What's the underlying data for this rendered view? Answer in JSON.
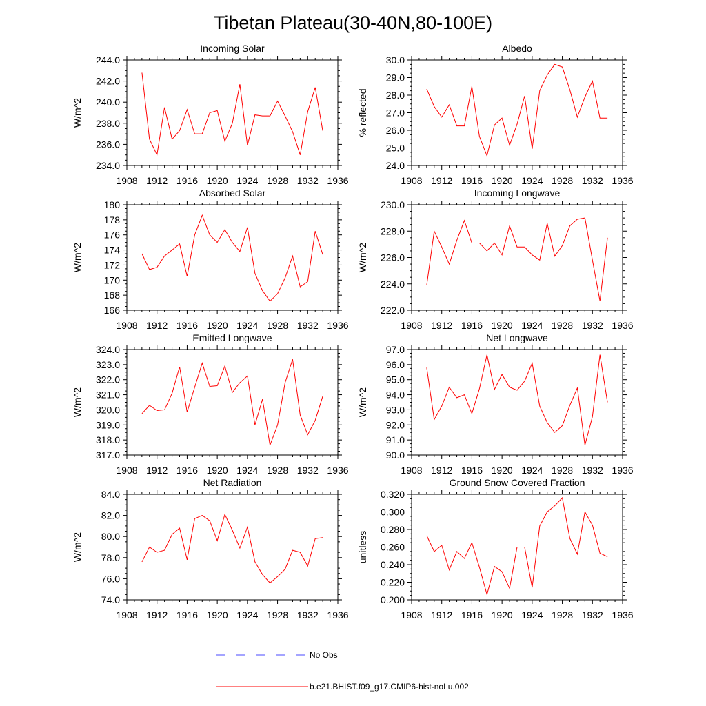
{
  "title": "Tibetan Plateau(30-40N,80-100E)",
  "legend": {
    "items": [
      {
        "label": "No Obs",
        "color": "#4a4aff",
        "style": "dashed"
      },
      {
        "label": "b.e21.BHIST.f09_g17.CMIP6-hist-noLu.002",
        "color": "#ff0000",
        "style": "solid"
      }
    ]
  },
  "chart_data": [
    {
      "type": "line",
      "title": "Incoming Solar",
      "xlabel": "",
      "ylabel": "W/m^2",
      "xlim": [
        1908,
        1936
      ],
      "ylim": [
        234.0,
        244.0
      ],
      "xticks": [
        1908,
        1912,
        1916,
        1920,
        1924,
        1928,
        1932,
        1936
      ],
      "yticks": [
        234.0,
        236.0,
        238.0,
        240.0,
        242.0,
        244.0
      ],
      "ytick_decimals": 1,
      "grid": false,
      "x": [
        1910,
        1911,
        1912,
        1913,
        1914,
        1915,
        1916,
        1917,
        1918,
        1919,
        1920,
        1921,
        1922,
        1923,
        1924,
        1925,
        1926,
        1927,
        1928,
        1929,
        1930,
        1931,
        1932,
        1933,
        1934
      ],
      "series": [
        {
          "values": [
            242.8,
            236.5,
            235.0,
            239.5,
            236.5,
            237.3,
            239.3,
            237.0,
            237.0,
            239.0,
            239.2,
            236.3,
            238.0,
            241.7,
            235.9,
            238.8,
            238.7,
            238.7,
            240.1,
            238.7,
            237.2,
            235.0,
            239.1,
            241.4,
            237.3
          ],
          "color": "#ff0000"
        }
      ]
    },
    {
      "type": "line",
      "title": "Albedo",
      "xlabel": "",
      "ylabel": "% reflected",
      "xlim": [
        1908,
        1936
      ],
      "ylim": [
        24.0,
        30.0
      ],
      "xticks": [
        1908,
        1912,
        1916,
        1920,
        1924,
        1928,
        1932,
        1936
      ],
      "yticks": [
        24.0,
        25.0,
        26.0,
        27.0,
        28.0,
        29.0,
        30.0
      ],
      "ytick_decimals": 1,
      "grid": false,
      "x": [
        1910,
        1911,
        1912,
        1913,
        1914,
        1915,
        1916,
        1917,
        1918,
        1919,
        1920,
        1921,
        1922,
        1923,
        1924,
        1925,
        1926,
        1927,
        1928,
        1929,
        1930,
        1931,
        1932,
        1933,
        1934
      ],
      "series": [
        {
          "values": [
            28.35,
            27.35,
            26.75,
            27.45,
            26.25,
            26.25,
            28.5,
            25.65,
            24.55,
            26.3,
            26.7,
            25.15,
            26.35,
            27.95,
            24.95,
            28.25,
            29.15,
            29.75,
            29.6,
            28.3,
            26.75,
            27.9,
            28.8,
            26.7,
            26.7
          ],
          "color": "#ff0000"
        }
      ]
    },
    {
      "type": "line",
      "title": "Absorbed Solar",
      "xlabel": "",
      "ylabel": "W/m^2",
      "xlim": [
        1908,
        1936
      ],
      "ylim": [
        166,
        180
      ],
      "xticks": [
        1908,
        1912,
        1916,
        1920,
        1924,
        1928,
        1932,
        1936
      ],
      "yticks": [
        166,
        168,
        170,
        172,
        174,
        176,
        178,
        180
      ],
      "ytick_decimals": 0,
      "grid": false,
      "x": [
        1910,
        1911,
        1912,
        1913,
        1914,
        1915,
        1916,
        1917,
        1918,
        1919,
        1920,
        1921,
        1922,
        1923,
        1924,
        1925,
        1926,
        1927,
        1928,
        1929,
        1930,
        1931,
        1932,
        1933,
        1934
      ],
      "series": [
        {
          "values": [
            173.5,
            171.4,
            171.7,
            173.2,
            174.0,
            174.8,
            170.5,
            176.0,
            178.6,
            176.0,
            175.0,
            176.7,
            175.0,
            173.8,
            177.0,
            170.9,
            168.6,
            167.2,
            168.2,
            170.3,
            173.2,
            169.1,
            169.8,
            176.5,
            173.4
          ],
          "color": "#ff0000"
        }
      ]
    },
    {
      "type": "line",
      "title": "Incoming Longwave",
      "xlabel": "",
      "ylabel": "W/m^2",
      "xlim": [
        1908,
        1936
      ],
      "ylim": [
        222.0,
        230.0
      ],
      "xticks": [
        1908,
        1912,
        1916,
        1920,
        1924,
        1928,
        1932,
        1936
      ],
      "yticks": [
        222.0,
        224.0,
        226.0,
        228.0,
        230.0
      ],
      "ytick_decimals": 1,
      "grid": false,
      "x": [
        1910,
        1911,
        1912,
        1913,
        1914,
        1915,
        1916,
        1917,
        1918,
        1919,
        1920,
        1921,
        1922,
        1923,
        1924,
        1925,
        1926,
        1927,
        1928,
        1929,
        1930,
        1931,
        1932,
        1933,
        1934
      ],
      "series": [
        {
          "values": [
            223.9,
            228.0,
            226.8,
            225.5,
            227.3,
            228.8,
            227.1,
            227.1,
            226.5,
            227.1,
            226.2,
            228.4,
            226.8,
            226.8,
            226.2,
            225.8,
            228.6,
            226.1,
            226.9,
            228.4,
            228.9,
            229.0,
            225.8,
            222.7,
            227.5
          ],
          "color": "#ff0000"
        }
      ]
    },
    {
      "type": "line",
      "title": "Emitted Longwave",
      "xlabel": "",
      "ylabel": "W/m^2",
      "xlim": [
        1908,
        1936
      ],
      "ylim": [
        317.0,
        324.0
      ],
      "xticks": [
        1908,
        1912,
        1916,
        1920,
        1924,
        1928,
        1932,
        1936
      ],
      "yticks": [
        317.0,
        318.0,
        319.0,
        320.0,
        321.0,
        322.0,
        323.0,
        324.0
      ],
      "ytick_decimals": 1,
      "grid": false,
      "x": [
        1910,
        1911,
        1912,
        1913,
        1914,
        1915,
        1916,
        1917,
        1918,
        1919,
        1920,
        1921,
        1922,
        1923,
        1924,
        1925,
        1926,
        1927,
        1928,
        1929,
        1930,
        1931,
        1932,
        1933,
        1934
      ],
      "series": [
        {
          "values": [
            319.75,
            320.3,
            319.95,
            320.0,
            321.1,
            322.85,
            319.85,
            321.5,
            323.1,
            321.55,
            321.6,
            322.9,
            321.15,
            321.8,
            322.25,
            319.0,
            320.7,
            317.65,
            319.0,
            321.8,
            323.35,
            319.65,
            318.35,
            319.3,
            320.9
          ],
          "color": "#ff0000"
        }
      ]
    },
    {
      "type": "line",
      "title": "Net Longwave",
      "xlabel": "",
      "ylabel": "W/m^2",
      "xlim": [
        1908,
        1936
      ],
      "ylim": [
        90.0,
        97.0
      ],
      "xticks": [
        1908,
        1912,
        1916,
        1920,
        1924,
        1928,
        1932,
        1936
      ],
      "yticks": [
        90.0,
        91.0,
        92.0,
        93.0,
        94.0,
        95.0,
        96.0,
        97.0
      ],
      "ytick_decimals": 1,
      "grid": false,
      "x": [
        1910,
        1911,
        1912,
        1913,
        1914,
        1915,
        1916,
        1917,
        1918,
        1919,
        1920,
        1921,
        1922,
        1923,
        1924,
        1925,
        1926,
        1927,
        1928,
        1929,
        1930,
        1931,
        1932,
        1933,
        1934
      ],
      "series": [
        {
          "values": [
            95.8,
            92.35,
            93.25,
            94.5,
            93.8,
            94.0,
            92.75,
            94.4,
            96.65,
            94.35,
            95.35,
            94.5,
            94.3,
            94.9,
            96.1,
            93.25,
            92.15,
            91.5,
            91.95,
            93.3,
            94.45,
            90.65,
            92.55,
            96.65,
            93.5
          ],
          "color": "#ff0000"
        }
      ]
    },
    {
      "type": "line",
      "title": "Net Radiation",
      "xlabel": "",
      "ylabel": "W/m^2",
      "xlim": [
        1908,
        1936
      ],
      "ylim": [
        74.0,
        84.0
      ],
      "xticks": [
        1908,
        1912,
        1916,
        1920,
        1924,
        1928,
        1932,
        1936
      ],
      "yticks": [
        74.0,
        76.0,
        78.0,
        80.0,
        82.0,
        84.0
      ],
      "ytick_decimals": 1,
      "grid": false,
      "x": [
        1910,
        1911,
        1912,
        1913,
        1914,
        1915,
        1916,
        1917,
        1918,
        1919,
        1920,
        1921,
        1922,
        1923,
        1924,
        1925,
        1926,
        1927,
        1928,
        1929,
        1930,
        1931,
        1932,
        1933,
        1934
      ],
      "series": [
        {
          "values": [
            77.6,
            79.0,
            78.5,
            78.7,
            80.2,
            80.8,
            77.8,
            81.7,
            82.0,
            81.5,
            79.6,
            82.1,
            80.6,
            78.9,
            80.9,
            77.6,
            76.4,
            75.6,
            76.2,
            76.9,
            78.7,
            78.5,
            77.2,
            79.8,
            79.9
          ],
          "color": "#ff0000"
        }
      ]
    },
    {
      "type": "line",
      "title": "Ground Snow Covered Fraction",
      "xlabel": "",
      "ylabel": "unitless",
      "xlim": [
        1908,
        1936
      ],
      "ylim": [
        0.2,
        0.32
      ],
      "xticks": [
        1908,
        1912,
        1916,
        1920,
        1924,
        1928,
        1932,
        1936
      ],
      "yticks": [
        0.2,
        0.22,
        0.24,
        0.26,
        0.28,
        0.3,
        0.32
      ],
      "ytick_decimals": 3,
      "grid": false,
      "x": [
        1910,
        1911,
        1912,
        1913,
        1914,
        1915,
        1916,
        1917,
        1918,
        1919,
        1920,
        1921,
        1922,
        1923,
        1924,
        1925,
        1926,
        1927,
        1928,
        1929,
        1930,
        1931,
        1932,
        1933,
        1934
      ],
      "series": [
        {
          "values": [
            0.273,
            0.255,
            0.262,
            0.234,
            0.255,
            0.247,
            0.265,
            0.237,
            0.206,
            0.238,
            0.232,
            0.213,
            0.26,
            0.26,
            0.214,
            0.284,
            0.3,
            0.307,
            0.316,
            0.27,
            0.252,
            0.3,
            0.285,
            0.253,
            0.249
          ],
          "color": "#ff0000"
        }
      ]
    }
  ]
}
